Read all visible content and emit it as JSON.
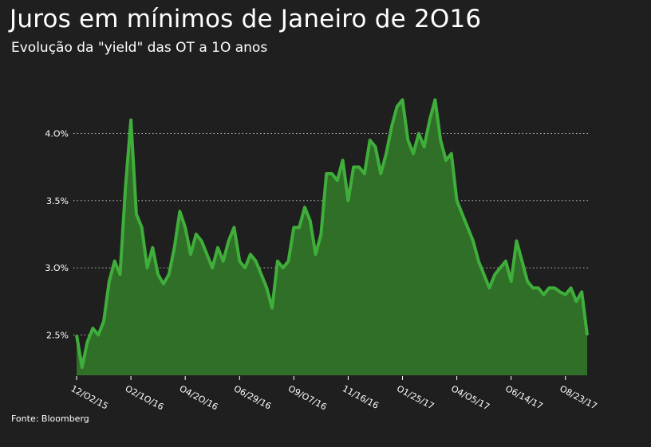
{
  "header": {
    "title": "Juros em mínimos de Janeiro de 2O16",
    "subtitle": "Evolução da \"yield\" das OT a 1O anos"
  },
  "footer": {
    "source": "Fonte: Bloomberg"
  },
  "colors": {
    "background": "#1f1f1f",
    "line": "#3fae3a",
    "fill": "#2f6f27",
    "grid": "#b9b9b9"
  },
  "chart_data": {
    "type": "area",
    "title": "Juros em mínimos de Janeiro de 2O16",
    "subtitle": "Evolução da \"yield\" das OT a 1O anos",
    "xlabel": "",
    "ylabel": "",
    "ylim": [
      2.2,
      4.4
    ],
    "grid": true,
    "y_ticks": [
      {
        "value": 2.5,
        "label": "2.5%"
      },
      {
        "value": 3.0,
        "label": "3.O%"
      },
      {
        "value": 3.5,
        "label": "3.5%"
      },
      {
        "value": 4.0,
        "label": "4.O%"
      }
    ],
    "x_ticks": [
      {
        "index": 0,
        "label": "12/O2/15"
      },
      {
        "index": 10,
        "label": "O2/1O/16"
      },
      {
        "index": 20,
        "label": "O4/2O/16"
      },
      {
        "index": 30,
        "label": "O6/29/16"
      },
      {
        "index": 40,
        "label": "O9/O7/16"
      },
      {
        "index": 50,
        "label": "11/16/16"
      },
      {
        "index": 60,
        "label": "O1/25/17"
      },
      {
        "index": 70,
        "label": "O4/O5/17"
      },
      {
        "index": 80,
        "label": "O6/14/17"
      },
      {
        "index": 90,
        "label": "O8/23/17"
      }
    ],
    "n_points": 95,
    "values": [
      2.5,
      2.26,
      2.45,
      2.55,
      2.5,
      2.6,
      2.9,
      3.05,
      2.95,
      3.6,
      4.1,
      3.4,
      3.3,
      3.0,
      3.15,
      2.95,
      2.88,
      2.95,
      3.15,
      3.42,
      3.3,
      3.1,
      3.25,
      3.2,
      3.1,
      3.0,
      3.15,
      3.05,
      3.2,
      3.3,
      3.05,
      3.0,
      3.1,
      3.05,
      2.95,
      2.85,
      2.7,
      3.05,
      3.0,
      3.05,
      3.3,
      3.3,
      3.45,
      3.35,
      3.1,
      3.25,
      3.7,
      3.7,
      3.65,
      3.8,
      3.5,
      3.75,
      3.75,
      3.7,
      3.95,
      3.9,
      3.7,
      3.85,
      4.05,
      4.2,
      4.25,
      3.95,
      3.85,
      4.0,
      3.9,
      4.1,
      4.25,
      3.95,
      3.8,
      3.85,
      3.5,
      3.4,
      3.3,
      3.2,
      3.05,
      2.95,
      2.85,
      2.95,
      3.0,
      3.05,
      2.9,
      3.2,
      3.05,
      2.9,
      2.85,
      2.85,
      2.8,
      2.85,
      2.85,
      2.82,
      2.8,
      2.85,
      2.75,
      2.82,
      2.5
    ]
  }
}
